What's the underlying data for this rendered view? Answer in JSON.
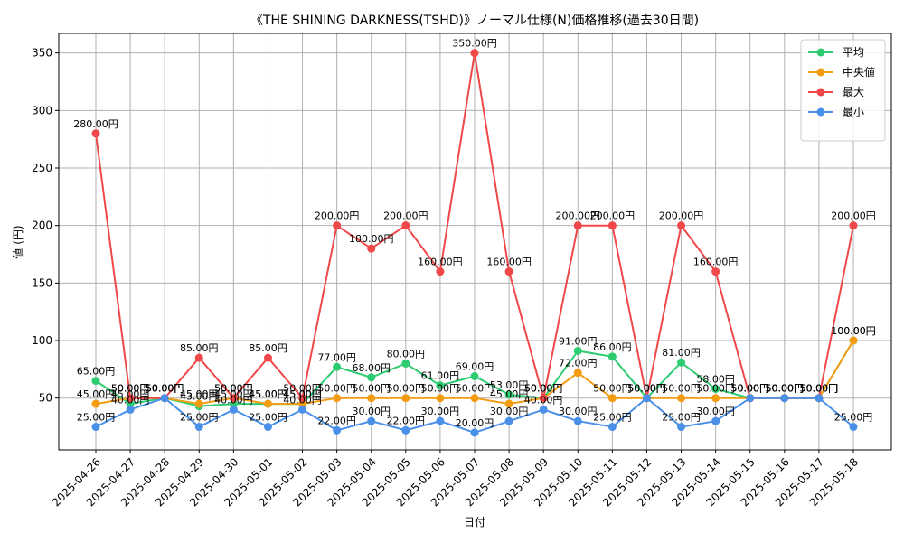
{
  "chart_data": {
    "type": "line",
    "title": "《THE SHINING DARKNESS(TSHD)》ノーマル仕様(N)価格推移(過去30日間)",
    "xlabel": "日付",
    "ylabel": "値 (円)",
    "ylim": [
      5,
      367
    ],
    "yticks": [
      50,
      100,
      150,
      200,
      250,
      300,
      350
    ],
    "grid": true,
    "legend_position": "top-right",
    "label_suffix": "円",
    "categories": [
      "2025-04-26",
      "2025-04-27",
      "2025-04-28",
      "2025-04-29",
      "2025-04-30",
      "2025-05-01",
      "2025-05-02",
      "2025-05-03",
      "2025-05-04",
      "2025-05-05",
      "2025-05-06",
      "2025-05-07",
      "2025-05-08",
      "2025-05-09",
      "2025-05-10",
      "2025-05-11",
      "2025-05-12",
      "2025-05-13",
      "2025-05-14",
      "2025-05-15",
      "2025-05-16",
      "2025-05-17",
      "2025-05-18"
    ],
    "series": [
      {
        "name": "平均",
        "color": "#2ecc71",
        "values": [
          65,
          45,
          50,
          43,
          45,
          45,
          45,
          77,
          68,
          80,
          61,
          69,
          53,
          50,
          91,
          86,
          50,
          81,
          58,
          50,
          50,
          50,
          100
        ]
      },
      {
        "name": "中央値",
        "color": "#f39c12",
        "values": [
          45,
          50,
          50,
          45,
          50,
          45,
          45,
          50,
          50,
          50,
          50,
          50,
          45,
          50,
          72,
          50,
          50,
          50,
          50,
          50,
          50,
          50,
          100
        ]
      },
      {
        "name": "最大",
        "color": "#f04848",
        "values": [
          280,
          50,
          50,
          85,
          50,
          85,
          50,
          200,
          180,
          200,
          160,
          350,
          160,
          50,
          200,
          200,
          50,
          200,
          160,
          50,
          50,
          50,
          200
        ]
      },
      {
        "name": "最小",
        "color": "#4a90e8",
        "values": [
          25,
          40,
          50,
          25,
          40,
          25,
          40,
          22,
          30,
          22,
          30,
          20,
          30,
          40,
          30,
          25,
          50,
          25,
          30,
          50,
          50,
          50,
          25
        ]
      }
    ]
  }
}
